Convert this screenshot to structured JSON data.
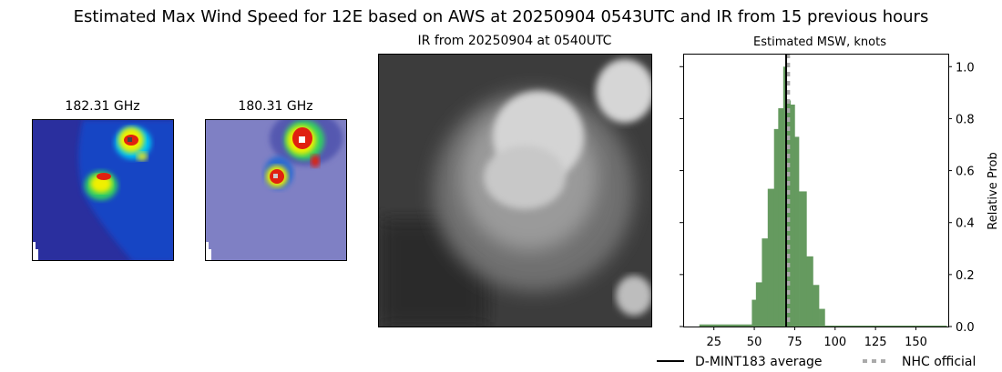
{
  "title": "Estimated Max Wind Speed for 12E based on AWS at 20250904 0543UTC and IR from 15 previous hours",
  "panels": {
    "mw1_title": "182.31 GHz",
    "mw2_title": "180.31 GHz",
    "ir_title": "IR from 20250904 at 0540UTC"
  },
  "chart_data": {
    "type": "bar",
    "title": "Estimated MSW, knots",
    "xlabel": "",
    "ylabel": "Relative Prob",
    "xlim": [
      6,
      170
    ],
    "ylim": [
      0,
      1.05
    ],
    "xticks": [
      25,
      50,
      75,
      100,
      125,
      150
    ],
    "yticks": [
      "0.0",
      "0.2",
      "0.4",
      "0.6",
      "0.8",
      "1.0"
    ],
    "ytick_values": [
      0,
      0.2,
      0.4,
      0.6,
      0.8,
      1.0
    ],
    "y_axis_side": "right",
    "bar_color": "#659a5f",
    "bins": [
      {
        "x0": 16,
        "x1": 48.5,
        "y": 0.008
      },
      {
        "x0": 48.5,
        "x1": 51,
        "y": 0.103
      },
      {
        "x0": 51,
        "x1": 54.7,
        "y": 0.17
      },
      {
        "x0": 54.7,
        "x1": 58.3,
        "y": 0.339
      },
      {
        "x0": 58.3,
        "x1": 62.2,
        "y": 0.53
      },
      {
        "x0": 62.2,
        "x1": 64.8,
        "y": 0.76
      },
      {
        "x0": 64.8,
        "x1": 67.9,
        "y": 0.84
      },
      {
        "x0": 67.9,
        "x1": 70,
        "y": 1.0
      },
      {
        "x0": 70,
        "x1": 72.4,
        "y": 0.87
      },
      {
        "x0": 72.4,
        "x1": 75,
        "y": 0.854
      },
      {
        "x0": 75,
        "x1": 77.6,
        "y": 0.73
      },
      {
        "x0": 77.6,
        "x1": 82.3,
        "y": 0.52
      },
      {
        "x0": 82.3,
        "x1": 86.3,
        "y": 0.27
      },
      {
        "x0": 86.3,
        "x1": 90,
        "y": 0.16
      },
      {
        "x0": 90,
        "x1": 93.6,
        "y": 0.068
      },
      {
        "x0": 93.6,
        "x1": 169,
        "y": 0.003
      }
    ],
    "lines": [
      {
        "name": "D-MINT183 average",
        "x": 69.7,
        "color": "#000000",
        "style": "solid"
      },
      {
        "name": "NHC official",
        "x": 71,
        "color": "#aaaaaa",
        "style": "dashed"
      }
    ],
    "legend_placement": "bottom"
  }
}
